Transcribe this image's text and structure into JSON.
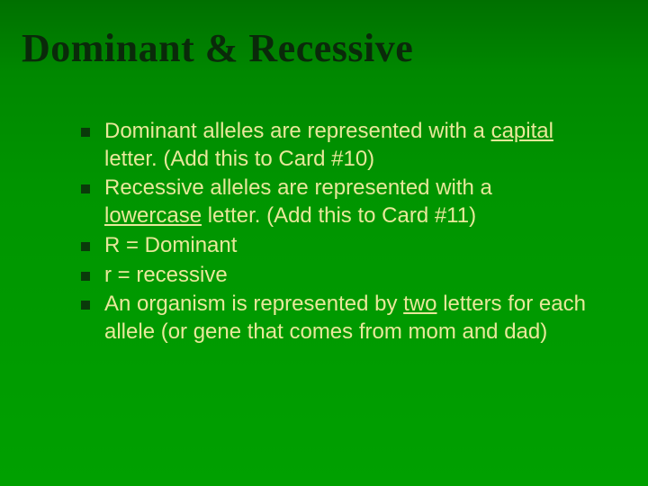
{
  "slide": {
    "background_gradient": {
      "top": "#007000",
      "bottom": "#00a000"
    },
    "title": {
      "text": "Dominant & Recessive",
      "color": "#0a2a0a",
      "font_family": "Georgia",
      "font_weight": "bold",
      "font_size_pt": 33
    },
    "bullets": {
      "marker_color": "#0a3a0a",
      "text_color": "#e8e89a",
      "font_size_pt": 18,
      "items": [
        {
          "segments": [
            {
              "text": "Dominant alleles are represented with a "
            },
            {
              "text": "capital",
              "underline": true
            },
            {
              "text": " letter. (Add this to Card #10)"
            }
          ]
        },
        {
          "segments": [
            {
              "text": "Recessive alleles are represented with a "
            },
            {
              "text": "lowercase",
              "underline": true
            },
            {
              "text": " letter. (Add this to Card #11)"
            }
          ]
        },
        {
          "segments": [
            {
              "text": "R = Dominant"
            }
          ]
        },
        {
          "segments": [
            {
              "text": "r = recessive"
            }
          ]
        },
        {
          "segments": [
            {
              "text": "An organism is represented by "
            },
            {
              "text": "two",
              "underline": true
            },
            {
              "text": " letters for each allele (or gene that comes from mom and dad)"
            }
          ]
        }
      ]
    }
  }
}
